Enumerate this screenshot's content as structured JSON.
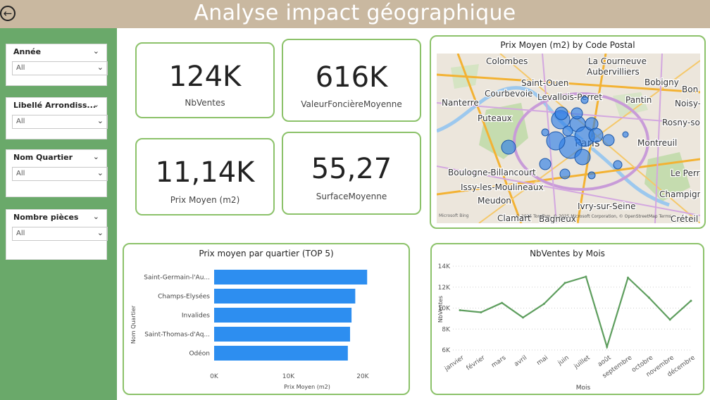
{
  "header": {
    "title": "Analyse impact géographique",
    "back_icon": "arrow-left-circle-icon"
  },
  "sidebar": {
    "slicers": [
      {
        "title": "Année",
        "value": "All"
      },
      {
        "title": "Libellé Arrondiss...",
        "value": "All"
      },
      {
        "title": "Nom Quartier",
        "value": "All"
      },
      {
        "title": "Nombre pièces",
        "value": "All"
      }
    ]
  },
  "kpis": [
    {
      "value": "124K",
      "label": "NbVentes"
    },
    {
      "value": "616K",
      "label": "ValeurFoncièreMoyenne"
    },
    {
      "value": "11,14K",
      "label": "Prix Moyen (m2)"
    },
    {
      "value": "55,27",
      "label": "SurfaceMoyenne"
    }
  ],
  "map": {
    "title": "Prix Moyen (m2) by Code Postal",
    "place_labels": [
      "Colombes",
      "La Courneuve",
      "Aubervilliers",
      "Saint-Ouen",
      "Bobigny",
      "Bon",
      "Courbevoie",
      "Levallois-Perret",
      "Nanterre",
      "Pantin",
      "Noisy-",
      "Puteaux",
      "Rosny-so",
      "Paris",
      "Montreuil",
      "Boulogne-Billancourt",
      "Le Perr",
      "Issy-les-Moulineaux",
      "Champign",
      "Meudon",
      "Ivry-sur-Seine",
      "Clamart",
      "Bagneux",
      "Créteil"
    ],
    "attribution": "© 2025 TomTom, © 2025 Microsoft Corporation, © OpenStreetMap Terms",
    "logo": "Microsoft Bing"
  },
  "colors": {
    "accent_green": "#8cc26a",
    "sidebar_green": "#6aa96a",
    "header_tan": "#c9b8a0",
    "bar_blue": "#2d8ef0",
    "line_green": "#5e9e5e",
    "bubble_blue": "#2f7fe6"
  },
  "chart_data": [
    {
      "type": "bar",
      "orientation": "horizontal",
      "title": "Prix moyen par quartier (TOP 5)",
      "categories": [
        "Saint-Germain-l'Au...",
        "Champs-Elysées",
        "Invalides",
        "Saint-Thomas-d'Aq...",
        "Odéon"
      ],
      "values": [
        20600,
        19000,
        18500,
        18300,
        18000
      ],
      "xlabel": "Prix Moyen (m2)",
      "ylabel": "Nom Quartier",
      "xlim": [
        0,
        22000
      ],
      "xticks": [
        "0K",
        "10K",
        "20K"
      ]
    },
    {
      "type": "line",
      "title": "NbVentes by Mois",
      "categories": [
        "janvier",
        "février",
        "mars",
        "avril",
        "mai",
        "juin",
        "juillet",
        "août",
        "septembre",
        "octobre",
        "novembre",
        "décembre"
      ],
      "values": [
        9800,
        9600,
        10500,
        9100,
        10400,
        12400,
        13000,
        6300,
        12900,
        11000,
        8900,
        10700
      ],
      "xlabel": "Mois",
      "ylabel": "NbVentes",
      "ylim": [
        5500,
        14000
      ],
      "yticks": [
        "6K",
        "8K",
        "10K",
        "12K",
        "14K"
      ],
      "grid": true
    }
  ]
}
